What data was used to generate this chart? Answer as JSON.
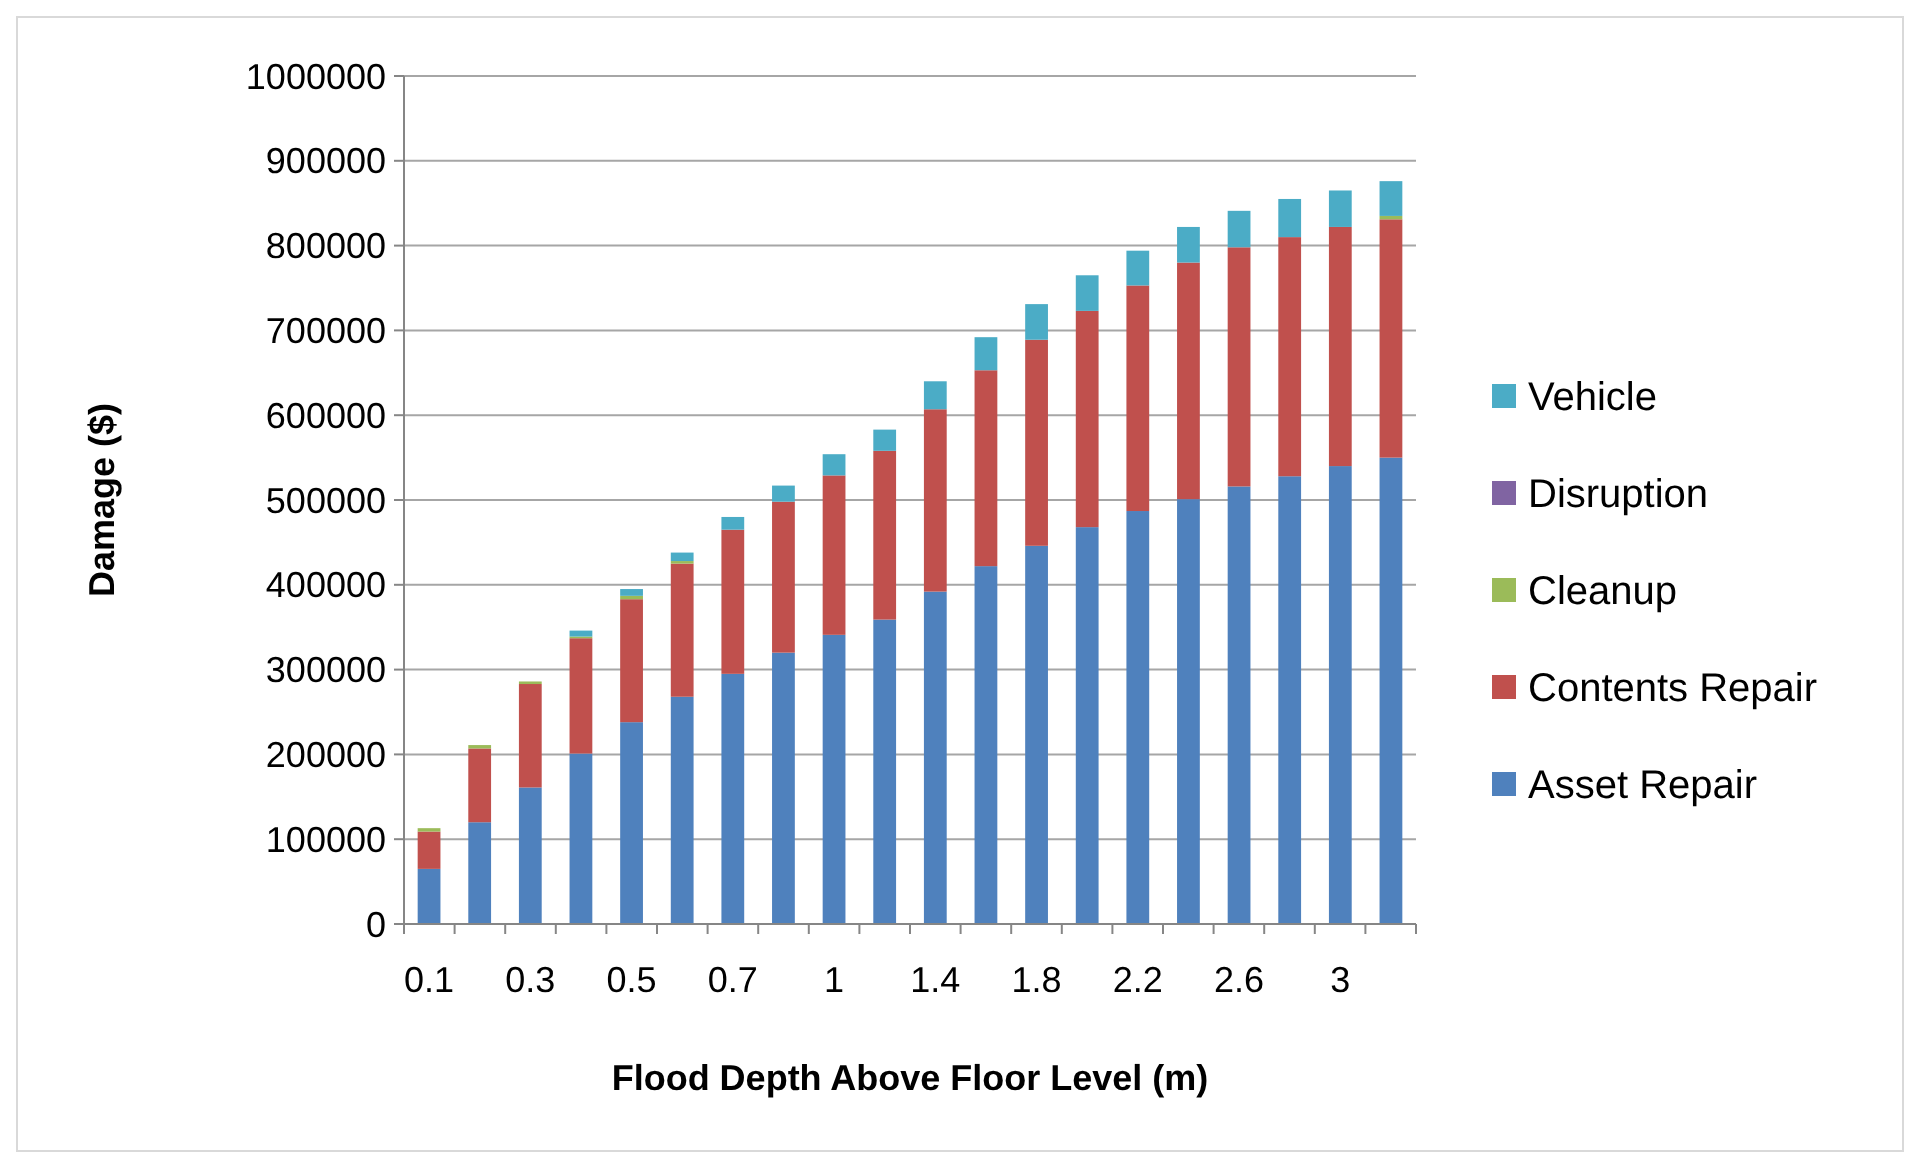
{
  "chart_data": {
    "type": "bar",
    "stacked": true,
    "xlabel": "Flood Depth Above Floor Level (m)",
    "ylabel": "Damage ($)",
    "categories": [
      "0.1",
      null,
      "0.3",
      null,
      "0.5",
      null,
      "0.7",
      null,
      "1",
      null,
      "1.4",
      null,
      "1.8",
      null,
      "2.2",
      null,
      "2.6",
      null,
      "3",
      null
    ],
    "series": [
      {
        "name": "Asset Repair",
        "color": "#4f81bd",
        "values": [
          65000,
          120000,
          161000,
          201000,
          238000,
          268000,
          295000,
          320000,
          341000,
          359000,
          392000,
          422000,
          446000,
          468000,
          487000,
          501000,
          516000,
          528000,
          540000,
          550000
        ]
      },
      {
        "name": "Contents Repair",
        "color": "#c0504d",
        "values": [
          44000,
          87000,
          122000,
          136000,
          145000,
          157000,
          170000,
          178000,
          188000,
          199000,
          215000,
          231000,
          243000,
          255000,
          266000,
          279000,
          282000,
          282000,
          282000,
          281000
        ]
      },
      {
        "name": "Cleanup",
        "color": "#9bbb59",
        "values": [
          4000,
          4000,
          3000,
          2000,
          4000,
          3000,
          null,
          null,
          null,
          null,
          null,
          null,
          null,
          null,
          null,
          null,
          null,
          null,
          null,
          4000
        ]
      },
      {
        "name": "Disruption",
        "color": "#8064a2",
        "values": [
          0,
          0,
          0,
          0,
          0,
          0,
          0,
          0,
          0,
          0,
          0,
          0,
          0,
          0,
          0,
          0,
          0,
          0,
          0,
          0
        ]
      },
      {
        "name": "Vehicle",
        "color": "#4bacc6",
        "values": [
          0,
          0,
          0,
          7000,
          8000,
          10000,
          15000,
          19000,
          25000,
          25000,
          33000,
          39000,
          42000,
          42000,
          41000,
          42000,
          43000,
          45000,
          43000,
          41000
        ]
      }
    ],
    "ylim": [
      0,
      1000000
    ],
    "yticks": [
      0,
      100000,
      200000,
      300000,
      400000,
      500000,
      600000,
      700000,
      800000,
      900000,
      1000000
    ],
    "grid": "y",
    "legend": "right"
  }
}
